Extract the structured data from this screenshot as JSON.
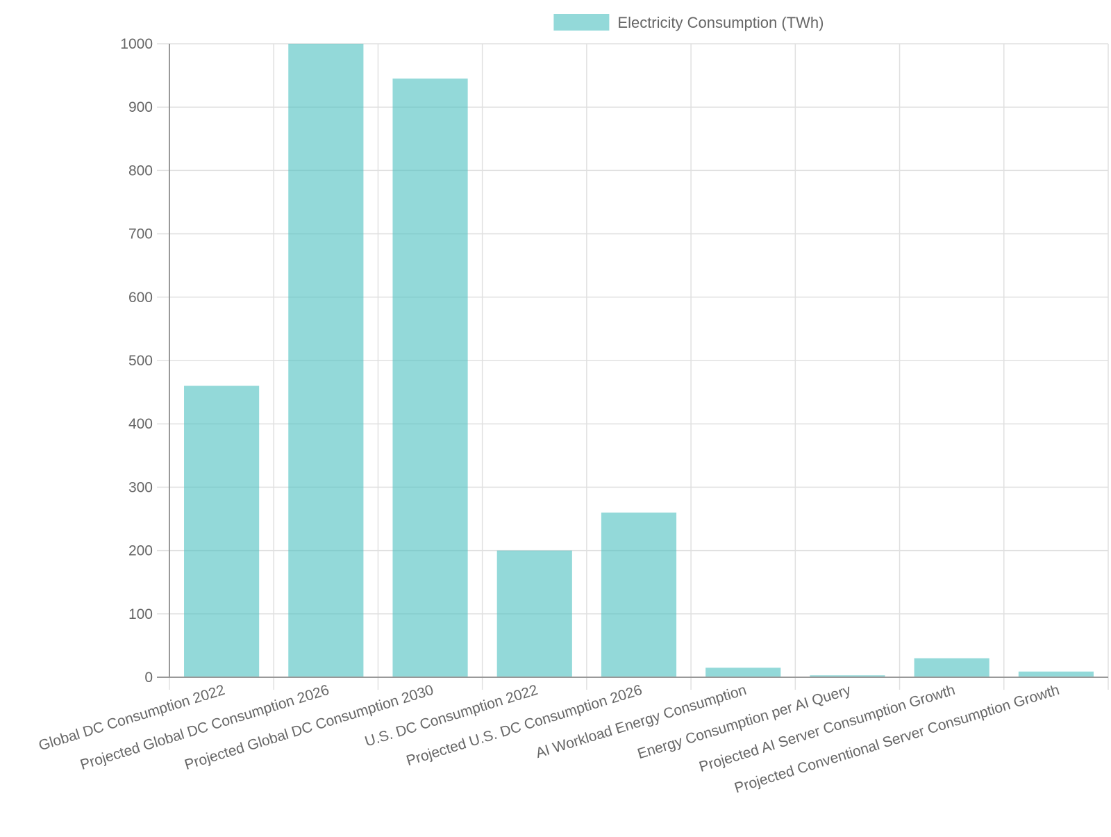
{
  "chart_data": {
    "type": "bar",
    "title": "",
    "xlabel": "",
    "ylabel": "",
    "categories": [
      "Global DC Consumption 2022",
      "Projected Global DC Consumption 2026",
      "Projected Global DC Consumption 2030",
      "U.S. DC Consumption 2022",
      "Projected U.S. DC Consumption 2026",
      "AI Workload Energy Consumption",
      "Energy Consumption per AI Query",
      "Projected AI Server Consumption Growth",
      "Projected Conventional Server Consumption Growth"
    ],
    "series": [
      {
        "name": "Electricity Consumption (TWh)",
        "values": [
          460,
          1000,
          945,
          200,
          260,
          15,
          3,
          30,
          9
        ],
        "color": "#4bc0c0"
      }
    ],
    "ylim": [
      0,
      1000
    ],
    "yticks": [
      "0",
      "100",
      "200",
      "300",
      "400",
      "500",
      "600",
      "700",
      "800",
      "900",
      "1000"
    ],
    "grid": true,
    "legend_position": "top-center"
  }
}
